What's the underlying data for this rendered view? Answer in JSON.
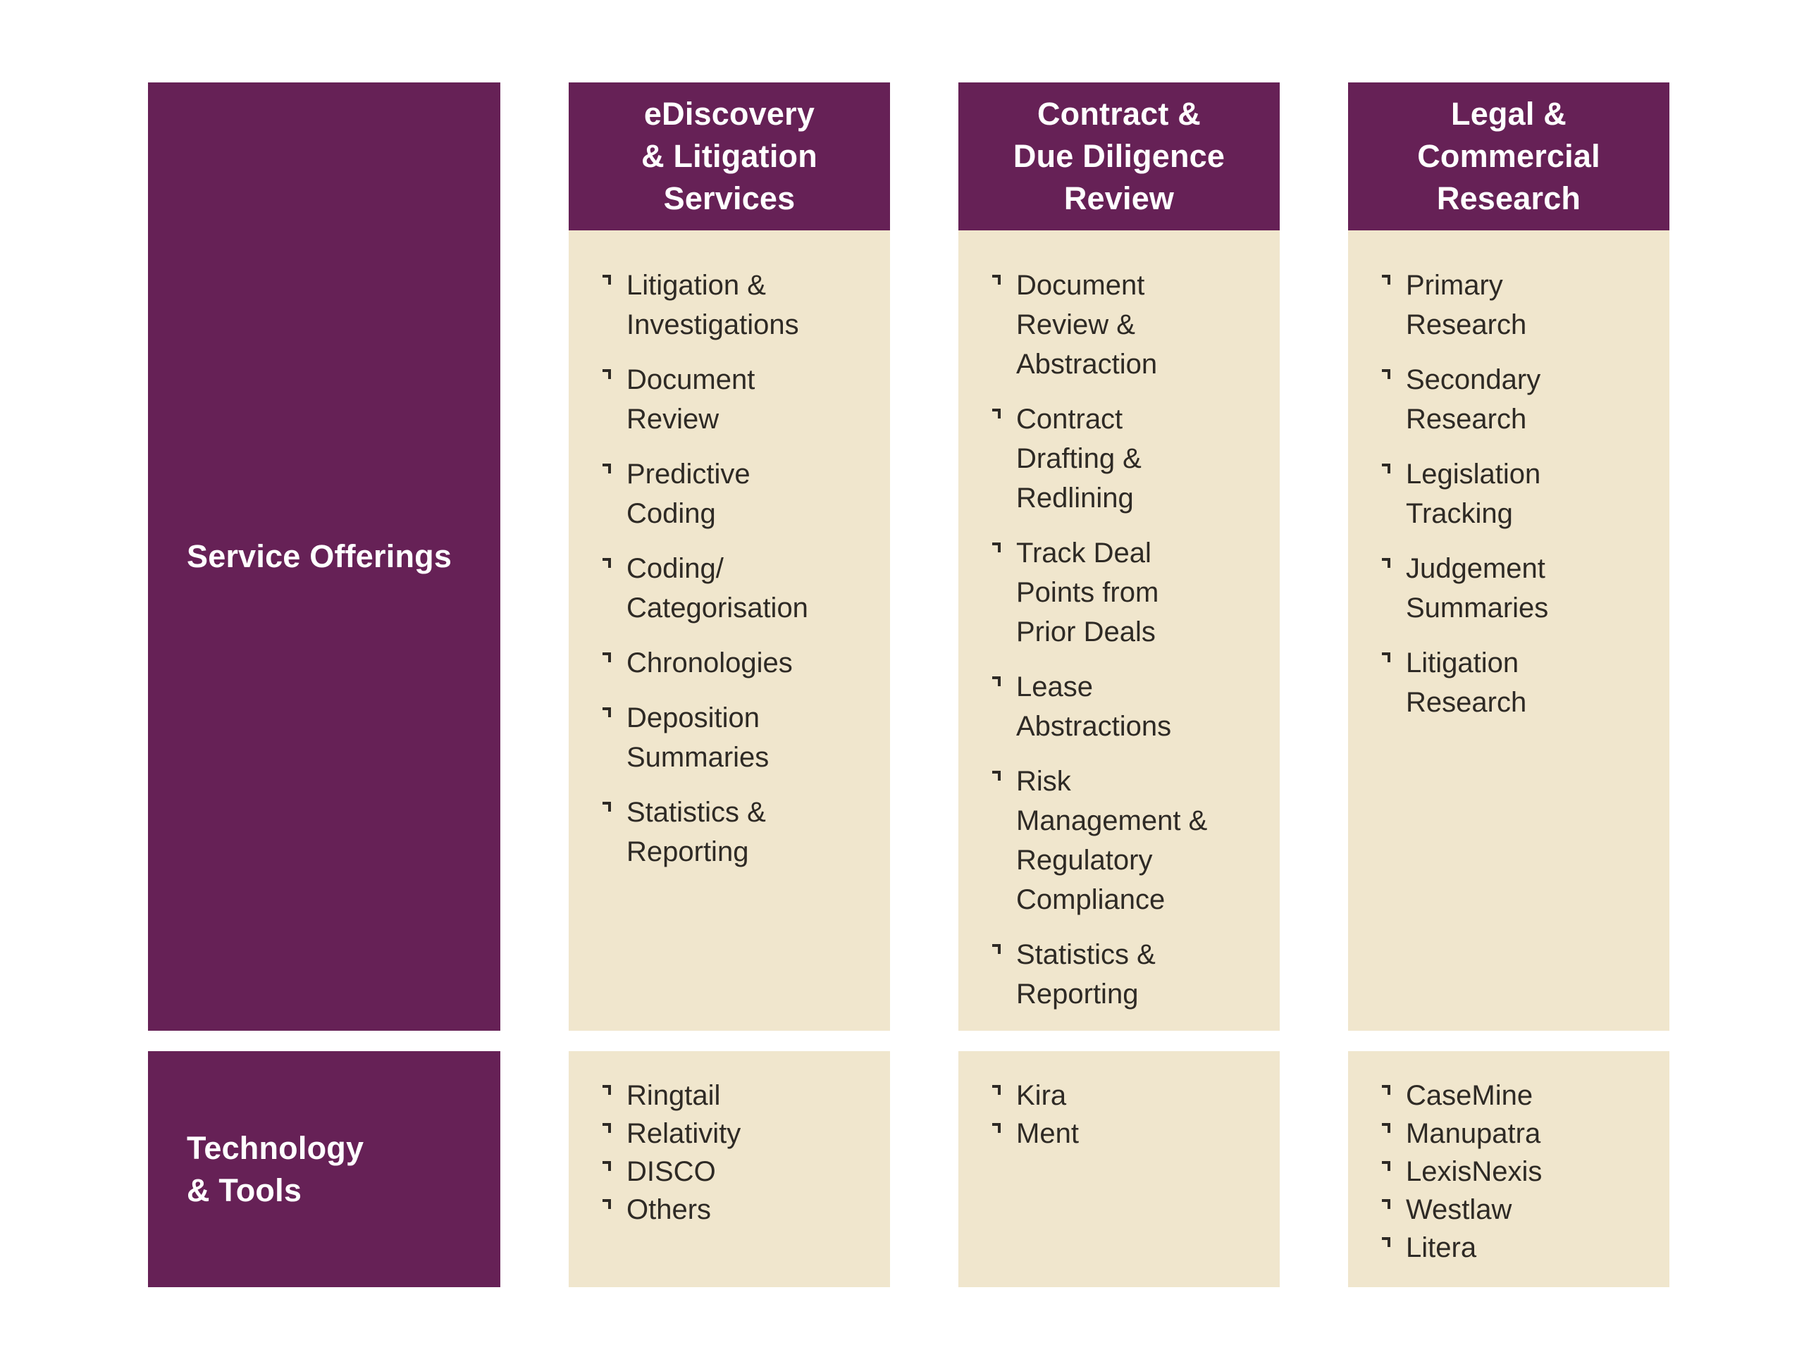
{
  "colors": {
    "purple": "#662156",
    "cream": "#f0e6cd",
    "ink": "#2e2a25",
    "background": "#ffffff"
  },
  "rows": {
    "services": {
      "label": "Service Offerings"
    },
    "tools": {
      "label_lines": [
        "Technology",
        "& Tools"
      ]
    }
  },
  "columns": [
    {
      "id": "ediscovery-litigation-services",
      "header_lines": [
        "eDiscovery",
        "& Litigation",
        "Services"
      ],
      "services": [
        [
          "Litigation &",
          "Investigations"
        ],
        [
          "Document",
          "Review"
        ],
        [
          "Predictive",
          "Coding"
        ],
        [
          "Coding/",
          "Categorisation"
        ],
        [
          "Chronologies"
        ],
        [
          "Deposition",
          "Summaries"
        ],
        [
          "Statistics &",
          "Reporting"
        ]
      ],
      "tools": [
        [
          "Ringtail"
        ],
        [
          "Relativity"
        ],
        [
          "DISCO"
        ],
        [
          "Others"
        ]
      ]
    },
    {
      "id": "contract-due-diligence-review",
      "header_lines": [
        "Contract &",
        "Due Diligence",
        "Review"
      ],
      "services": [
        [
          "Document",
          "Review &",
          "Abstraction"
        ],
        [
          "Contract",
          "Drafting &",
          "Redlining"
        ],
        [
          "Track Deal",
          "Points from",
          "Prior Deals"
        ],
        [
          "Lease",
          "Abstractions"
        ],
        [
          "Risk",
          "Management &",
          "Regulatory",
          "Compliance"
        ],
        [
          "Statistics &",
          "Reporting"
        ]
      ],
      "tools": [
        [
          "Kira"
        ],
        [
          "Ment"
        ]
      ]
    },
    {
      "id": "legal-commercial-research",
      "header_lines": [
        "Legal &",
        "Commercial",
        "Research"
      ],
      "services": [
        [
          "Primary",
          "Research"
        ],
        [
          "Secondary",
          "Research"
        ],
        [
          "Legislation",
          "Tracking"
        ],
        [
          "Judgement",
          "Summaries"
        ],
        [
          "Litigation",
          "Research"
        ]
      ],
      "tools": [
        [
          "CaseMine"
        ],
        [
          "Manupatra"
        ],
        [
          "LexisNexis"
        ],
        [
          "Westlaw"
        ],
        [
          "Litera"
        ]
      ]
    }
  ]
}
